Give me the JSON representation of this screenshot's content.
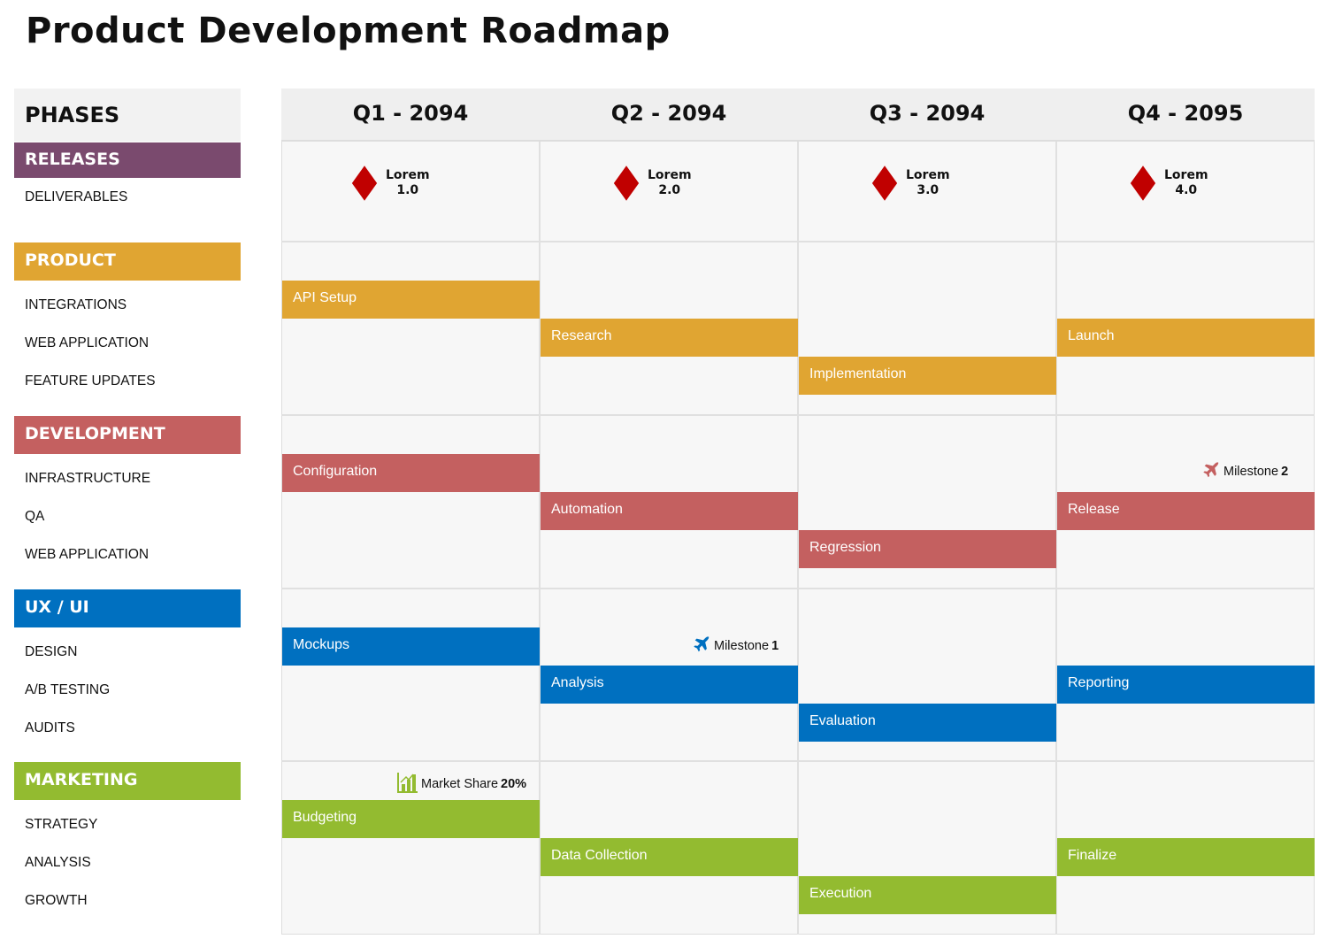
{
  "title": "Product Development Roadmap",
  "phases_label": "PHASES",
  "colors": {
    "releases": "#7a4a6e",
    "product": "#e0a532",
    "development": "#c46060",
    "uxui": "#0070c0",
    "marketing": "#93bb30",
    "release_marker": "#c00000"
  },
  "quarters": [
    "Q1 - 2094",
    "Q2 - 2094",
    "Q3 - 2094",
    "Q4 - 2095"
  ],
  "releases": {
    "label": "RELEASES",
    "items": [
      "DELIVERABLES"
    ],
    "markers": [
      [
        "Lorem",
        "1.0"
      ],
      [
        "Lorem",
        "2.0"
      ],
      [
        "Lorem",
        "3.0"
      ],
      [
        "Lorem",
        "4.0"
      ]
    ]
  },
  "sections": [
    {
      "label": "PRODUCT",
      "color": "#e0a532",
      "items": [
        "INTEGRATIONS",
        "WEB APPLICATION",
        "FEATURE UPDATES"
      ],
      "tasks": [
        {
          "label": "API Setup",
          "quarter": 1,
          "lane": 1
        },
        {
          "label": "Research",
          "quarter": 2,
          "lane": 2
        },
        {
          "label": "Implementation",
          "quarter": 3,
          "lane": 3
        },
        {
          "label": "Launch",
          "quarter": 4,
          "lane": 2
        }
      ]
    },
    {
      "label": "DEVELOPMENT",
      "color": "#c46060",
      "items": [
        "INFRASTRUCTURE",
        "QA",
        "WEB APPLICATION"
      ],
      "tasks": [
        {
          "label": "Configuration",
          "quarter": 1,
          "lane": 1
        },
        {
          "label": "Automation",
          "quarter": 2,
          "lane": 2
        },
        {
          "label": "Regression",
          "quarter": 3,
          "lane": 3
        },
        {
          "label": "Release",
          "quarter": 4,
          "lane": 2
        }
      ]
    },
    {
      "label": "UX / UI",
      "color": "#0070c0",
      "items": [
        "DESIGN",
        "A/B TESTING",
        "AUDITS"
      ],
      "tasks": [
        {
          "label": "Mockups",
          "quarter": 1,
          "lane": 1
        },
        {
          "label": "Analysis",
          "quarter": 2,
          "lane": 2
        },
        {
          "label": "Evaluation",
          "quarter": 3,
          "lane": 3
        },
        {
          "label": "Reporting",
          "quarter": 4,
          "lane": 2
        }
      ]
    },
    {
      "label": "MARKETING",
      "color": "#93bb30",
      "items": [
        "STRATEGY",
        "ANALYSIS",
        "GROWTH"
      ],
      "tasks": [
        {
          "label": "Budgeting",
          "quarter": 1,
          "lane": 1
        },
        {
          "label": "Data Collection",
          "quarter": 2,
          "lane": 2
        },
        {
          "label": "Execution",
          "quarter": 3,
          "lane": 3
        },
        {
          "label": "Finalize",
          "quarter": 4,
          "lane": 2
        }
      ]
    }
  ],
  "milestones": [
    {
      "text": "Milestone",
      "bold": "1",
      "icon": "airplane-icon",
      "color": "#0070c0"
    },
    {
      "text": "Milestone",
      "bold": "2",
      "icon": "airplane-icon",
      "color": "#c46060"
    },
    {
      "text": "Market Share",
      "bold": "20%",
      "icon": "bar-chart-icon",
      "color": "#93bb30"
    }
  ]
}
